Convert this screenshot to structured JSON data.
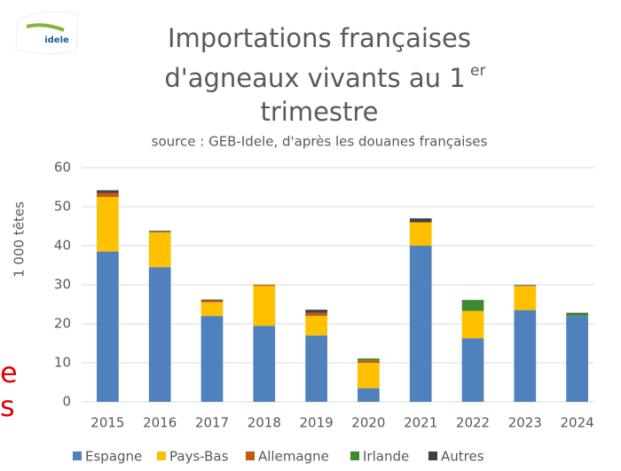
{
  "chart_data": {
    "type": "stacked_bar",
    "title": [
      "Importations françaises",
      "d'agneaux vivants au 1",
      "trimestre"
    ],
    "title_superscript": "er",
    "subtitle": "source : GEB-Idele, d'après les douanes françaises",
    "y_label": "1 000 têtes",
    "logo": "idele",
    "annotations": [
      "e",
      "s"
    ],
    "categories": [
      "2015",
      "2016",
      "2017",
      "2018",
      "2019",
      "2020",
      "2021",
      "2022",
      "2023",
      "2024"
    ],
    "series": [
      {
        "name": "Espagne",
        "color": "#4f81bd",
        "values": [
          38.5,
          34.5,
          22,
          19.5,
          17,
          3.5,
          40,
          16.3,
          23.5,
          22
        ]
      },
      {
        "name": "Pays-Bas",
        "color": "#ffc000",
        "values": [
          14,
          9,
          3.5,
          10.2,
          5,
          6.5,
          6,
          7,
          6.2,
          0
        ]
      },
      {
        "name": "Allemagne",
        "color": "#c55a11",
        "values": [
          1,
          0,
          0.5,
          0.3,
          0.8,
          0.6,
          0,
          0,
          0,
          0
        ]
      },
      {
        "name": "Irlande",
        "color": "#3f8a2f",
        "values": [
          0,
          0,
          0,
          0,
          0,
          0.5,
          0,
          2.8,
          0,
          0.6
        ]
      },
      {
        "name": "Autres",
        "color": "#404040",
        "values": [
          0.7,
          0.3,
          0.2,
          0,
          0.8,
          0,
          1,
          0,
          0.2,
          0.2
        ]
      }
    ],
    "ylim": [
      0,
      60
    ],
    "yticks": [
      0,
      10,
      20,
      30,
      40,
      50,
      60
    ],
    "grid": true
  }
}
